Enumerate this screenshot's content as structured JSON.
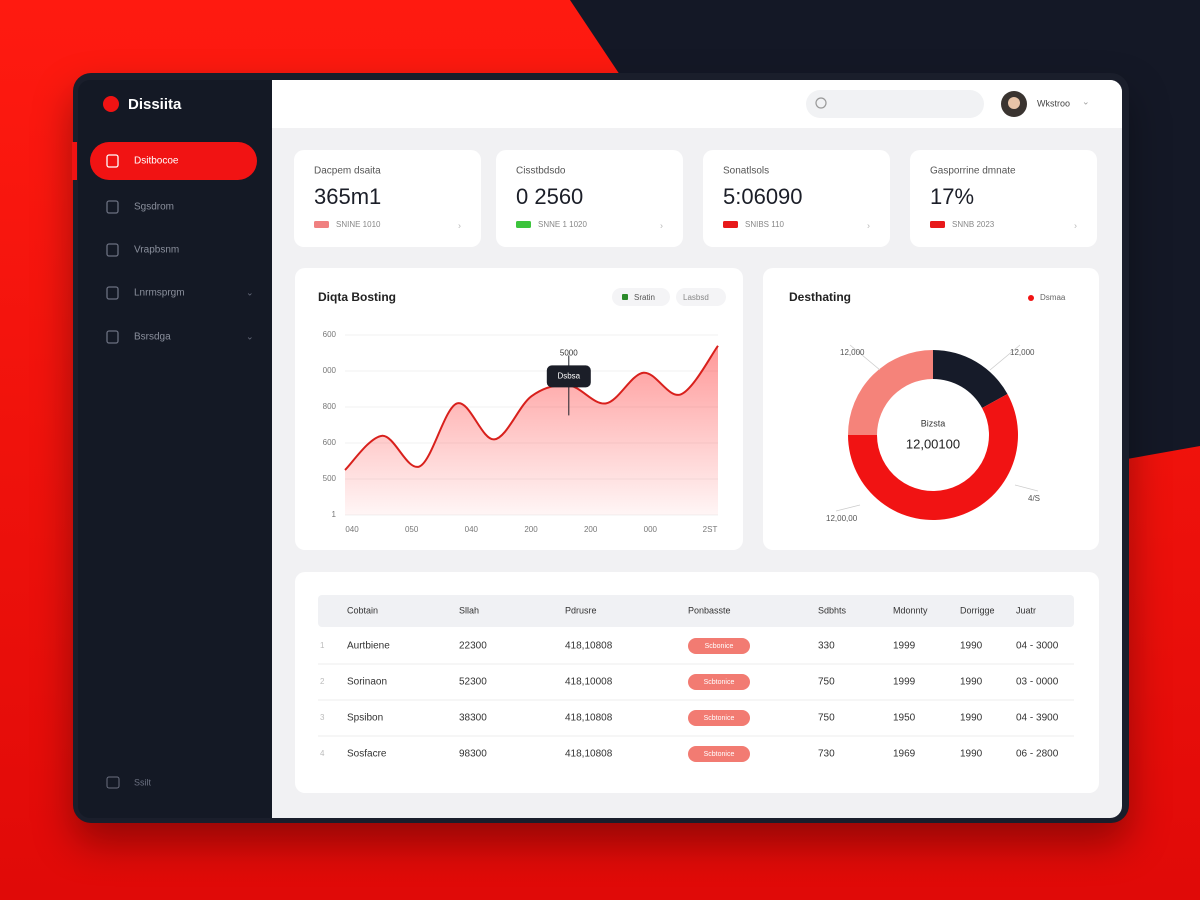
{
  "brand": "Dissiita",
  "nav": [
    "Dsitbocoe",
    "Sgsdrom",
    "Vrapbsnm",
    "Lnrmsprgm",
    "Bsrsdga"
  ],
  "sidebar_footer": "Ssilt",
  "header": {
    "user": "Wkstroo"
  },
  "kpis": [
    {
      "label": "Dacpem dsaita",
      "value": "365m1",
      "note": "SNINE 1010",
      "color": "#f08080"
    },
    {
      "label": "Cisstbdsdo",
      "value": "0 2560",
      "note": "SNNE 1 1020",
      "color": "#3cc43c"
    },
    {
      "label": "Sonatlsols",
      "value": "5:06090",
      "note": "SNIBS 110",
      "color": "#e8191a"
    },
    {
      "label": "Gasporrine dmnate",
      "value": "17%",
      "note": "SNNB 2023",
      "color": "#e8191a"
    }
  ],
  "line_chart": {
    "title": "Diqta Bosting",
    "legend": [
      "Sratin",
      "Lasbsd"
    ],
    "y_labels": [
      "600",
      "000",
      "800",
      "600",
      "500",
      "1"
    ],
    "x_labels": [
      "040",
      "050",
      "040",
      "200",
      "200",
      "000",
      "2ST"
    ],
    "ylim": [
      0,
      100
    ],
    "values": [
      25,
      44,
      27,
      62,
      42,
      66,
      72,
      62,
      79,
      67,
      94
    ],
    "color": "#d8201c",
    "tooltip": {
      "index": 6,
      "label": "5000",
      "value": "Dsbsa"
    }
  },
  "donut": {
    "title": "Desthating",
    "legend": "Dsmaa",
    "center_label": "Bizsta",
    "center_value": "12,00100",
    "segments": [
      {
        "value": 17,
        "color": "#161b29"
      },
      {
        "value": 58,
        "color": "#f11313"
      },
      {
        "value": 25,
        "color": "#f5837a"
      }
    ],
    "callouts": [
      "12,000",
      "12,000",
      "4/S",
      "12,00,00"
    ]
  },
  "table": {
    "headers": [
      "Cobtain",
      "Sllah",
      "Pdrusre",
      "Ponbasste",
      "Sdbhts",
      "Mdonnty",
      "Dorrigge",
      "Juatr"
    ],
    "rows": [
      [
        "1",
        "Aurtbiene",
        "22300",
        "418,10808",
        "Scbonice",
        "330",
        "1999",
        "1990",
        "04 - 3000"
      ],
      [
        "2",
        "Sorinaon",
        "52300",
        "418,10008",
        "Scbtonice",
        "750",
        "1999",
        "1990",
        "03 - 0000"
      ],
      [
        "3",
        "Spsibon",
        "38300",
        "418,10808",
        "Scbtonice",
        "750",
        "1950",
        "1990",
        "04 - 3900"
      ],
      [
        "4",
        "Sosfacre",
        "98300",
        "418,10808",
        "Scbtonice",
        "730",
        "1969",
        "1990",
        "06 - 2800"
      ]
    ]
  }
}
